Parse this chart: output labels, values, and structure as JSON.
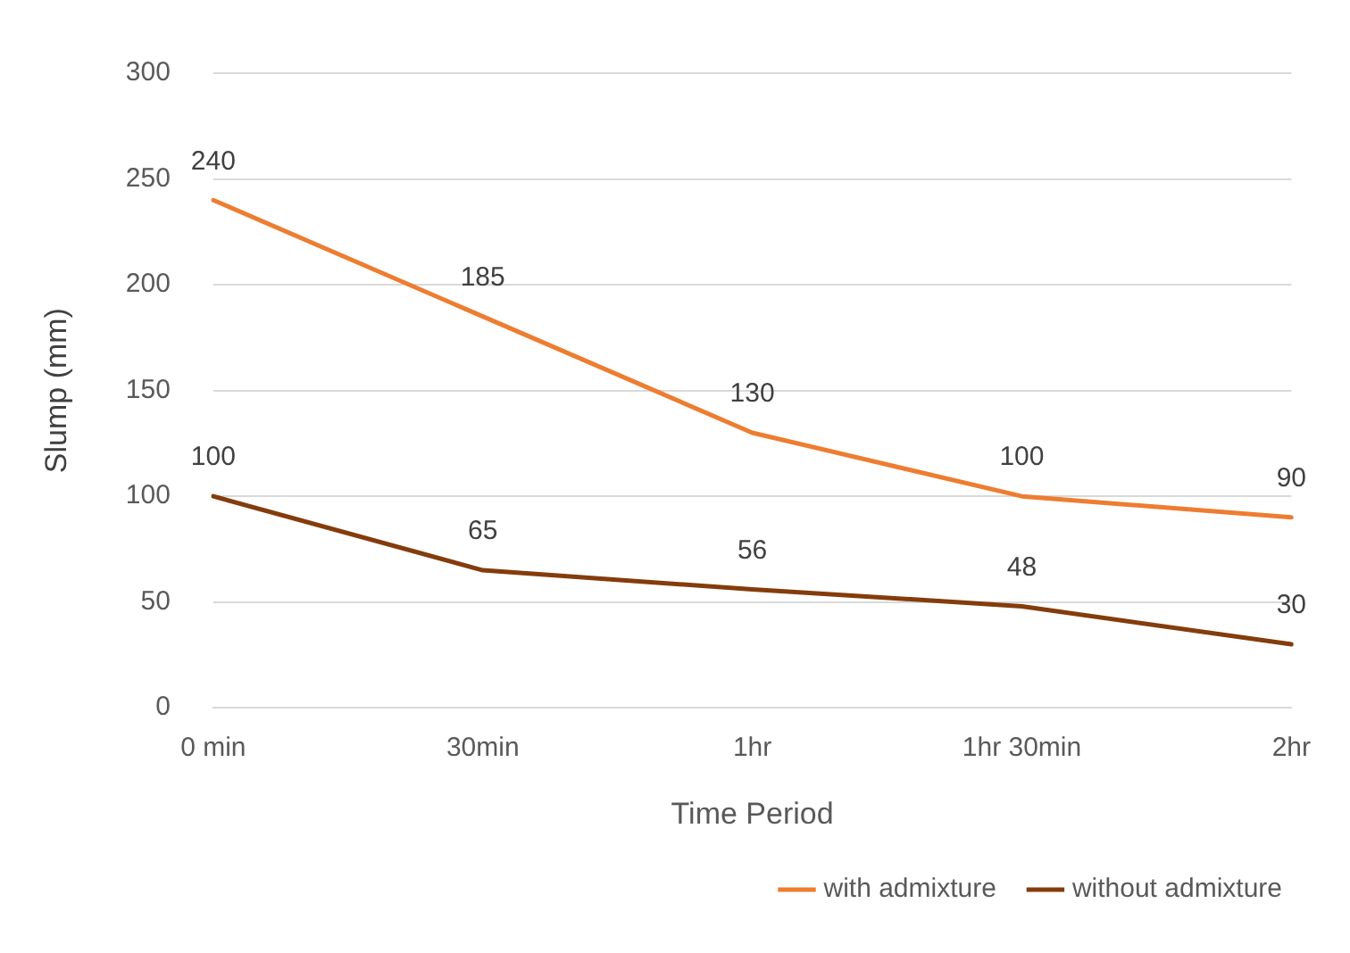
{
  "chart_data": {
    "type": "line",
    "xlabel": "Time Period",
    "ylabel": "Slump (mm)",
    "categories": [
      "0 min",
      "30min",
      "1hr",
      "1hr 30min",
      "2hr"
    ],
    "series": [
      {
        "name": "with admixture",
        "color": "#ed7d31",
        "values": [
          240,
          185,
          130,
          100,
          90
        ]
      },
      {
        "name": "without admixture",
        "color": "#843c0c",
        "values": [
          100,
          65,
          56,
          48,
          30
        ]
      }
    ],
    "ylim": [
      0,
      300
    ],
    "yticks": [
      0,
      50,
      100,
      150,
      200,
      250,
      300
    ],
    "grid": "y",
    "legend": "bottom",
    "marker": "none",
    "line_style": "solid",
    "data_labels": true
  }
}
